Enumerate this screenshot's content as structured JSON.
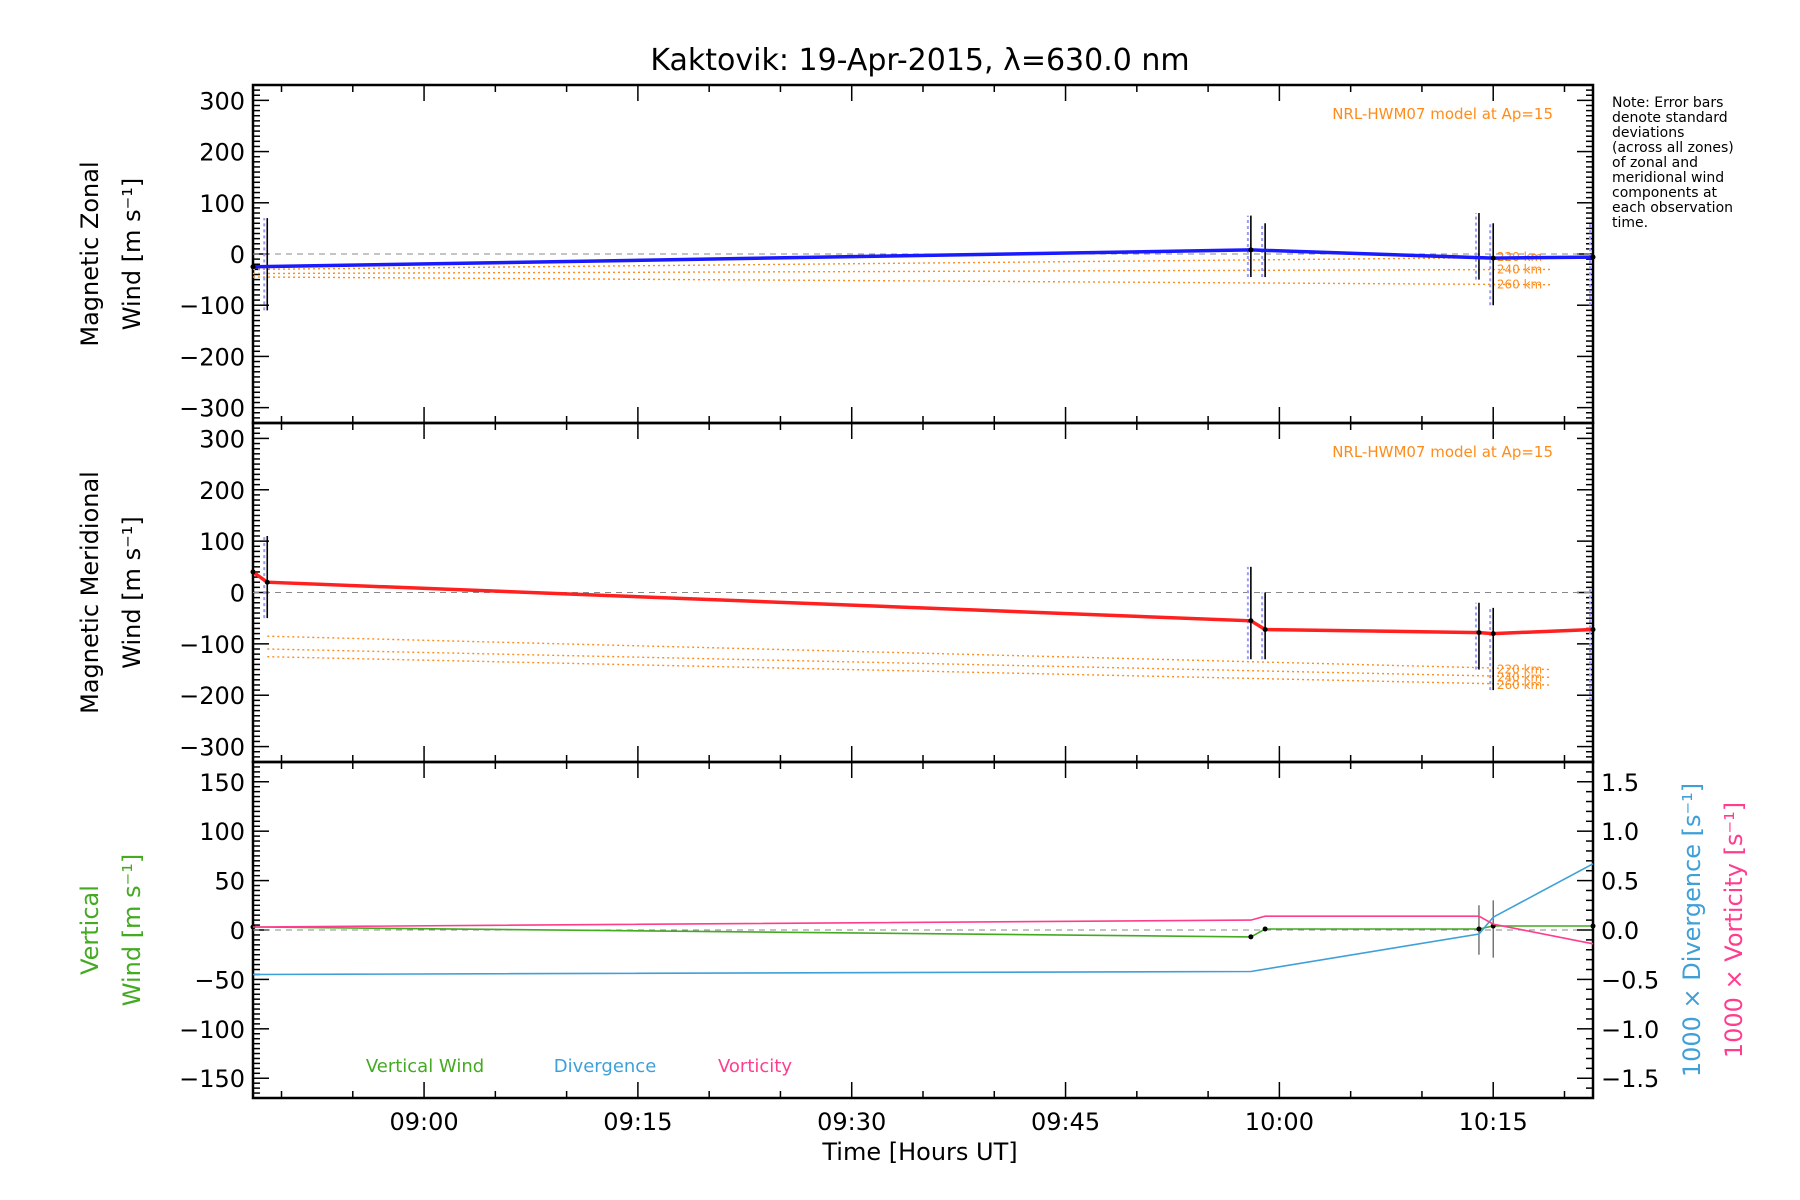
{
  "chart_data": {
    "title": "Kaktovik: 19-Apr-2015, λ=630.0 nm",
    "xlabel": "Time [Hours UT]",
    "xlim": [
      "08:48",
      "10:22"
    ],
    "xticks": [
      "09:00",
      "09:15",
      "09:30",
      "09:45",
      "10:00",
      "10:15"
    ],
    "note": [
      "Note: Error bars",
      "denote standard",
      "deviations",
      "(across all zones)",
      "of zonal and",
      "meridional wind",
      "components at",
      "each observation",
      "time."
    ],
    "colors": {
      "zonal": "#1a1aff",
      "meridional": "#ff2020",
      "model": "#ff8c1a",
      "vertical": "#44aa22",
      "divergence": "#3fa0d8",
      "vorticity": "#ff3d8e",
      "errorbar": "#9999ff",
      "obs_error": "#000000"
    },
    "panels": [
      {
        "id": "zonal",
        "type": "line",
        "ylabel_1": "Magnetic Zonal",
        "ylabel_2": "Wind [m s⁻¹]",
        "ylim": [
          -330,
          330
        ],
        "yticks": [
          300,
          200,
          100,
          0,
          -100,
          -200,
          -300
        ],
        "model_label": "NRL-HWM07 model at Ap=15",
        "series": [
          {
            "type": "wind",
            "x": [
              "08:48",
              "09:58",
              "10:15",
              "10:22"
            ],
            "y": [
              -25,
              8,
              -8,
              -6
            ]
          }
        ],
        "model_lines": [
          {
            "name": "220 km",
            "x": [
              "08:48",
              "10:19"
            ],
            "y": [
              -30,
              -6
            ]
          },
          {
            "name": "240 km",
            "x": [
              "08:48",
              "10:19"
            ],
            "y": [
              -38,
              -30
            ]
          },
          {
            "name": "260 km",
            "x": [
              "08:48",
              "10:19"
            ],
            "y": [
              -45,
              -60
            ]
          }
        ],
        "error_bars": [
          {
            "x": "08:49",
            "low": -110,
            "high": 70
          },
          {
            "x": "09:58",
            "low": -45,
            "high": 75
          },
          {
            "x": "09:59",
            "low": -45,
            "high": 60
          },
          {
            "x": "10:14",
            "low": -50,
            "high": 80
          },
          {
            "x": "10:15",
            "low": -100,
            "high": 60
          },
          {
            "x": "10:22",
            "low": -100,
            "high": 60
          }
        ]
      },
      {
        "id": "meridional",
        "type": "line",
        "ylabel_1": "Magnetic Meridional",
        "ylabel_2": "Wind [m s⁻¹]",
        "ylim": [
          -330,
          330
        ],
        "yticks": [
          300,
          200,
          100,
          0,
          -100,
          -200,
          -300
        ],
        "model_label": "NRL-HWM07 model at Ap=15",
        "series": [
          {
            "type": "wind",
            "x": [
              "08:48",
              "08:49",
              "09:58",
              "09:59",
              "10:14",
              "10:15",
              "10:22"
            ],
            "y": [
              40,
              20,
              -55,
              -72,
              -78,
              -80,
              -72
            ]
          }
        ],
        "model_lines": [
          {
            "name": "220 km",
            "x": [
              "08:49",
              "10:19"
            ],
            "y": [
              -85,
              -150
            ]
          },
          {
            "name": "240 km",
            "x": [
              "08:49",
              "10:19"
            ],
            "y": [
              -110,
              -165
            ]
          },
          {
            "name": "260 km",
            "x": [
              "08:49",
              "10:19"
            ],
            "y": [
              -125,
              -180
            ]
          }
        ],
        "error_bars": [
          {
            "x": "08:49",
            "low": -50,
            "high": 110
          },
          {
            "x": "09:58",
            "low": -130,
            "high": 50
          },
          {
            "x": "09:59",
            "low": -130,
            "high": 0
          },
          {
            "x": "10:14",
            "low": -150,
            "high": -20
          },
          {
            "x": "10:15",
            "low": -190,
            "high": -30
          },
          {
            "x": "10:22",
            "low": -210,
            "high": 10
          }
        ]
      },
      {
        "id": "vertical",
        "type": "line",
        "ylabel_1": "Vertical",
        "ylabel_2": "Wind [m s⁻¹]",
        "ylim": [
          -170,
          170
        ],
        "yticks": [
          150,
          100,
          50,
          0,
          -50,
          -100,
          -150
        ],
        "y2lim": [
          -1.7,
          1.7
        ],
        "y2ticks": [
          1.5,
          1.0,
          0.5,
          0.0,
          -0.5,
          -1.0,
          -1.5
        ],
        "y2label_div": "1000 × Divergence [s⁻¹]",
        "y2label_vor": "1000 × Vorticity [s⁻¹]",
        "legend": [
          "Vertical Wind",
          "Divergence",
          "Vorticity"
        ],
        "vertical_wind": {
          "x": [
            "08:48",
            "09:58",
            "09:59",
            "10:14",
            "10:15",
            "10:22"
          ],
          "y": [
            3,
            -7,
            1,
            1,
            4,
            4
          ]
        },
        "divergence": {
          "x": [
            "08:48",
            "09:58",
            "10:14",
            "10:15",
            "10:22"
          ],
          "y": [
            -0.45,
            -0.42,
            -0.04,
            0.13,
            0.67
          ]
        },
        "vorticity": {
          "x": [
            "08:48",
            "09:58",
            "09:59",
            "10:14",
            "10:15",
            "10:22"
          ],
          "y": [
            0.03,
            0.1,
            0.14,
            0.14,
            0.06,
            -0.14
          ]
        },
        "error_bars": [
          {
            "x": "10:14",
            "low": -0.25,
            "high": 0.25
          },
          {
            "x": "10:15",
            "low": -0.28,
            "high": 0.3
          }
        ]
      }
    ]
  }
}
